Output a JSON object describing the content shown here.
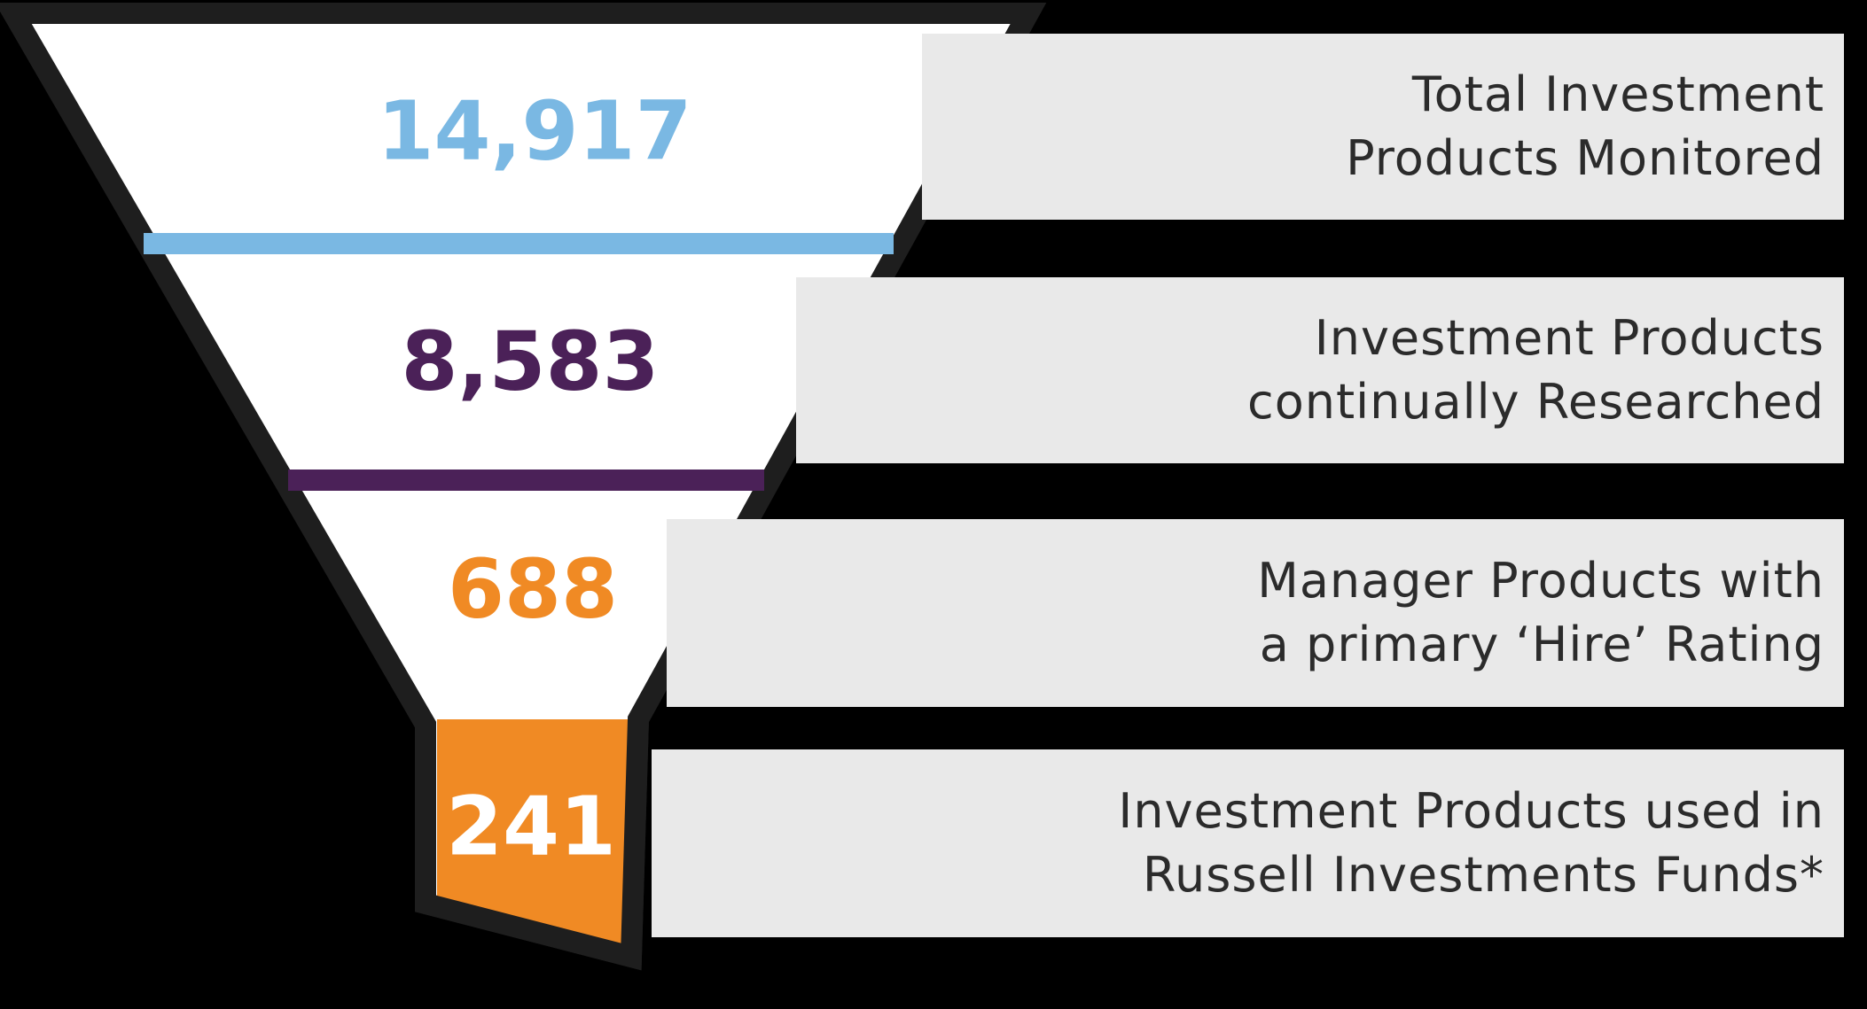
{
  "stages": [
    {
      "value": "14,917",
      "label": "Total Investment\nProducts Monitored",
      "color": "#7ab8e3"
    },
    {
      "value": "8,583",
      "label": "Investment Products\ncontinually Researched",
      "color": "#4b2158"
    },
    {
      "value": "688",
      "label": "Manager Products with\na primary ‘Hire’ Rating",
      "color": "#f08a24"
    },
    {
      "value": "241",
      "label": "Investment Products used in\nRussell Investments Funds*",
      "color": "#ffffff"
    }
  ],
  "colors": {
    "background": "#000000",
    "funnel_fill": "#ffffff",
    "funnel_outline": "#1e1e1e",
    "spout_fill": "#f08a24",
    "label_box": "#e9e9e9",
    "divider_1": "#7ab8e3",
    "divider_2": "#4b2158"
  }
}
